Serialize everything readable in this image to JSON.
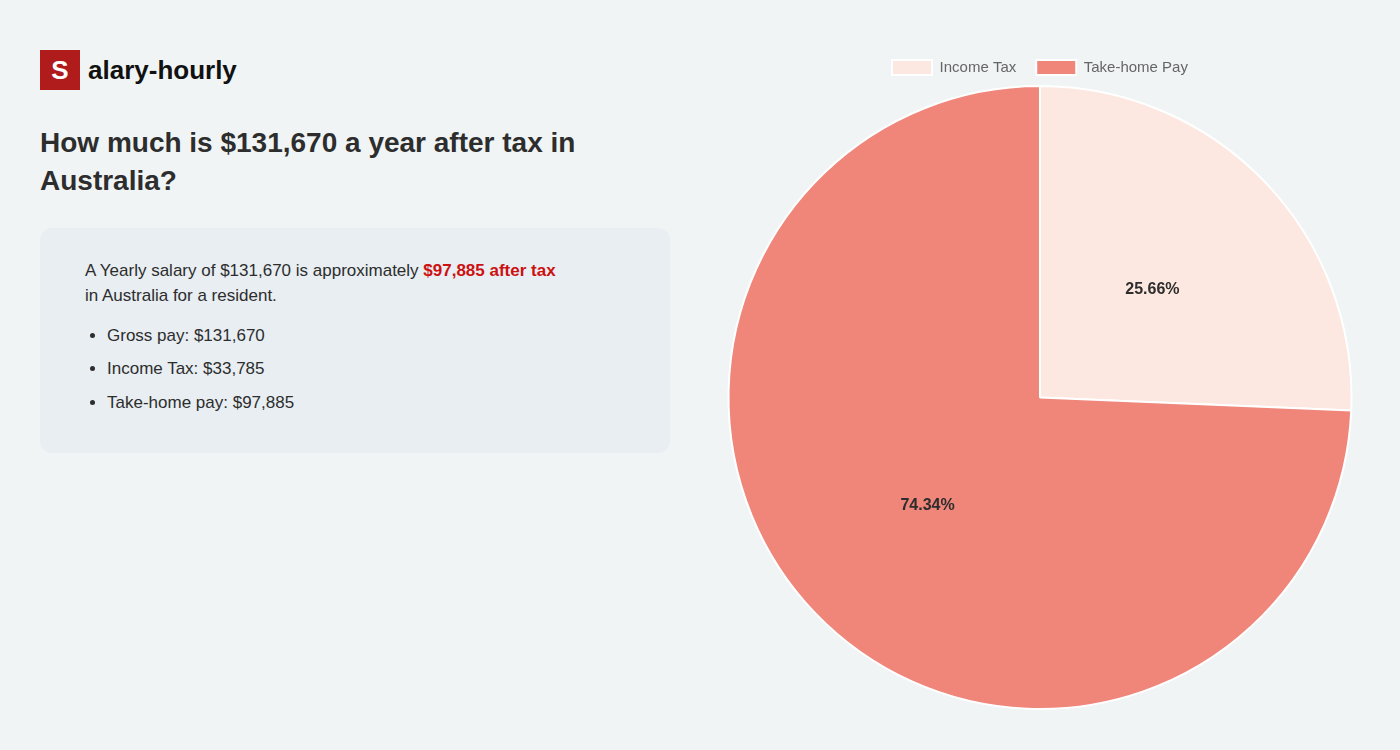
{
  "chart_data": {
    "type": "pie",
    "title": [
      "How much is $131,670 a year after tax in",
      "Australia?"
    ],
    "annotations": [
      "S",
      "alary-hourly",
      "A Yearly salary of $131,670 is approximately ",
      "$97,885 after tax",
      "in Australia for a resident.",
      "Gross pay: $131,670",
      "Income Tax: $33,785",
      "Take-home pay: $97,885"
    ],
    "categories": [
      "Income Tax",
      "Take-home Pay"
    ],
    "values": [
      25.66,
      74.34
    ],
    "value_labels": [
      "25.66%",
      "74.34%"
    ],
    "colors": [
      "#fce8e0",
      "#f0857a"
    ],
    "legend": "top",
    "data_labels": true
  }
}
